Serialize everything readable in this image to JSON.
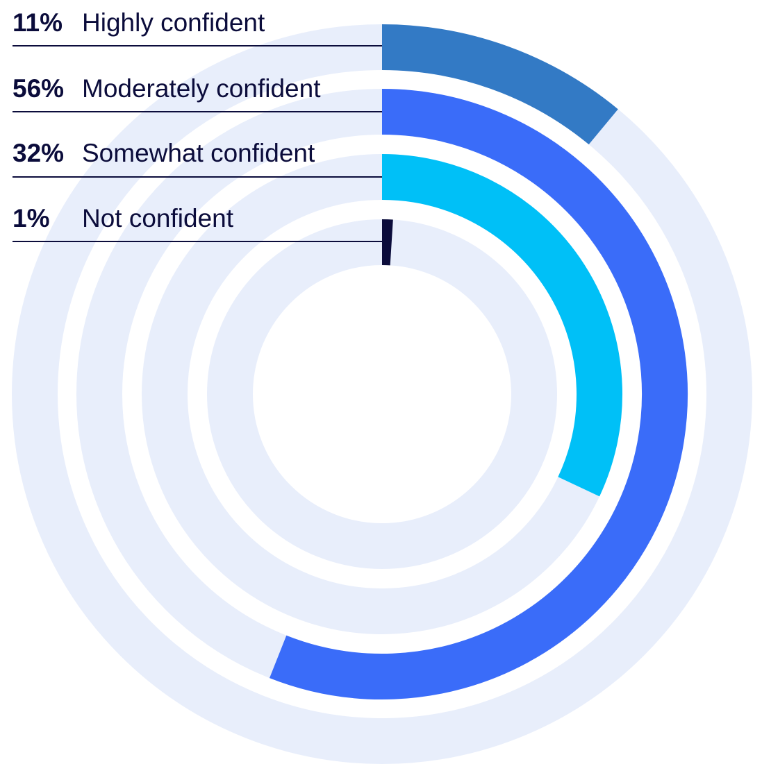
{
  "chart_data": {
    "type": "radial_bar",
    "categories": [
      "Highly confident",
      "Moderately confident",
      "Somewhat confident",
      "Not confident"
    ],
    "values": [
      11,
      56,
      32,
      1
    ],
    "value_labels": [
      "11%",
      "56%",
      "32%",
      "1%"
    ],
    "colors": [
      "#337ac5",
      "#3a6cf9",
      "#00c0f7",
      "#0b0c3b"
    ],
    "track_color": "#e8eefb",
    "ylim": [
      0,
      100
    ]
  }
}
